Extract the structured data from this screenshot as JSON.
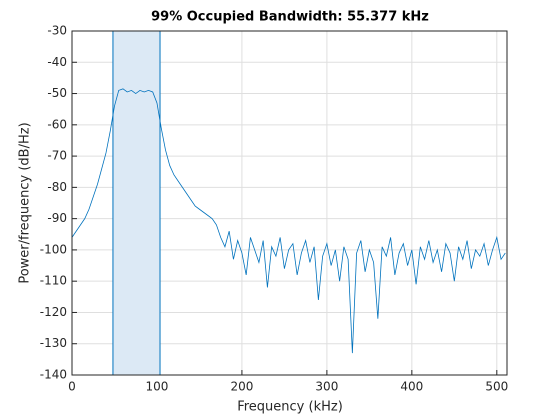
{
  "chart_data": {
    "type": "line",
    "title": "99% Occupied Bandwidth: 55.377 kHz",
    "x_label": "Frequency (kHz)",
    "y_label": "Power/frequency (dB/Hz)",
    "xlim": [
      0,
      512
    ],
    "ylim": [
      -140,
      -30
    ],
    "xticks": [
      0,
      100,
      200,
      300,
      400,
      500
    ],
    "yticks": [
      -140,
      -130,
      -120,
      -110,
      -100,
      -90,
      -80,
      -70,
      -60,
      -50,
      -40,
      -30
    ],
    "grid": true,
    "occupied_band": [
      48.2,
      103.6
    ],
    "band_color": "#dce9f5",
    "series": [
      {
        "color": "#0072bd",
        "x": [
          0,
          5,
          10,
          15,
          20,
          25,
          30,
          35,
          40,
          45,
          50,
          55,
          60,
          65,
          70,
          75,
          80,
          85,
          90,
          95,
          100,
          105,
          110,
          115,
          120,
          125,
          130,
          135,
          140,
          145,
          150,
          155,
          160,
          165,
          170,
          175,
          180,
          185,
          190,
          195,
          200,
          205,
          210,
          215,
          220,
          225,
          230,
          235,
          240,
          245,
          250,
          255,
          260,
          265,
          270,
          275,
          280,
          285,
          290,
          295,
          300,
          305,
          310,
          315,
          320,
          325,
          330,
          335,
          340,
          345,
          350,
          355,
          360,
          365,
          370,
          375,
          380,
          385,
          390,
          395,
          400,
          405,
          410,
          415,
          420,
          425,
          430,
          435,
          440,
          445,
          450,
          455,
          460,
          465,
          470,
          475,
          480,
          485,
          490,
          495,
          500,
          505,
          510
        ],
        "values": [
          -96,
          -94,
          -92,
          -90,
          -87,
          -83,
          -79,
          -74,
          -69,
          -62,
          -54,
          -49,
          -48.5,
          -49.5,
          -49,
          -50,
          -49,
          -49.5,
          -49,
          -49.5,
          -53,
          -61,
          -68,
          -73,
          -76,
          -78,
          -80,
          -82,
          -84,
          -86,
          -87,
          -88,
          -89,
          -90,
          -92,
          -96,
          -99,
          -94,
          -103,
          -97,
          -101,
          -108,
          -96,
          -100,
          -104,
          -97,
          -112,
          -99,
          -102,
          -96,
          -106,
          -100,
          -98,
          -108,
          -101,
          -97,
          -104,
          -99,
          -116,
          -102,
          -98,
          -105,
          -100,
          -110,
          -99,
          -103,
          -133,
          -101,
          -97,
          -107,
          -100,
          -104,
          -122,
          -99,
          -102,
          -96,
          -108,
          -101,
          -98,
          -105,
          -100,
          -111,
          -99,
          -103,
          -97,
          -104,
          -100,
          -107,
          -98,
          -101,
          -110,
          -99,
          -103,
          -97,
          -106,
          -100,
          -102,
          -98,
          -105,
          -100,
          -96,
          -103,
          -101
        ]
      }
    ]
  }
}
